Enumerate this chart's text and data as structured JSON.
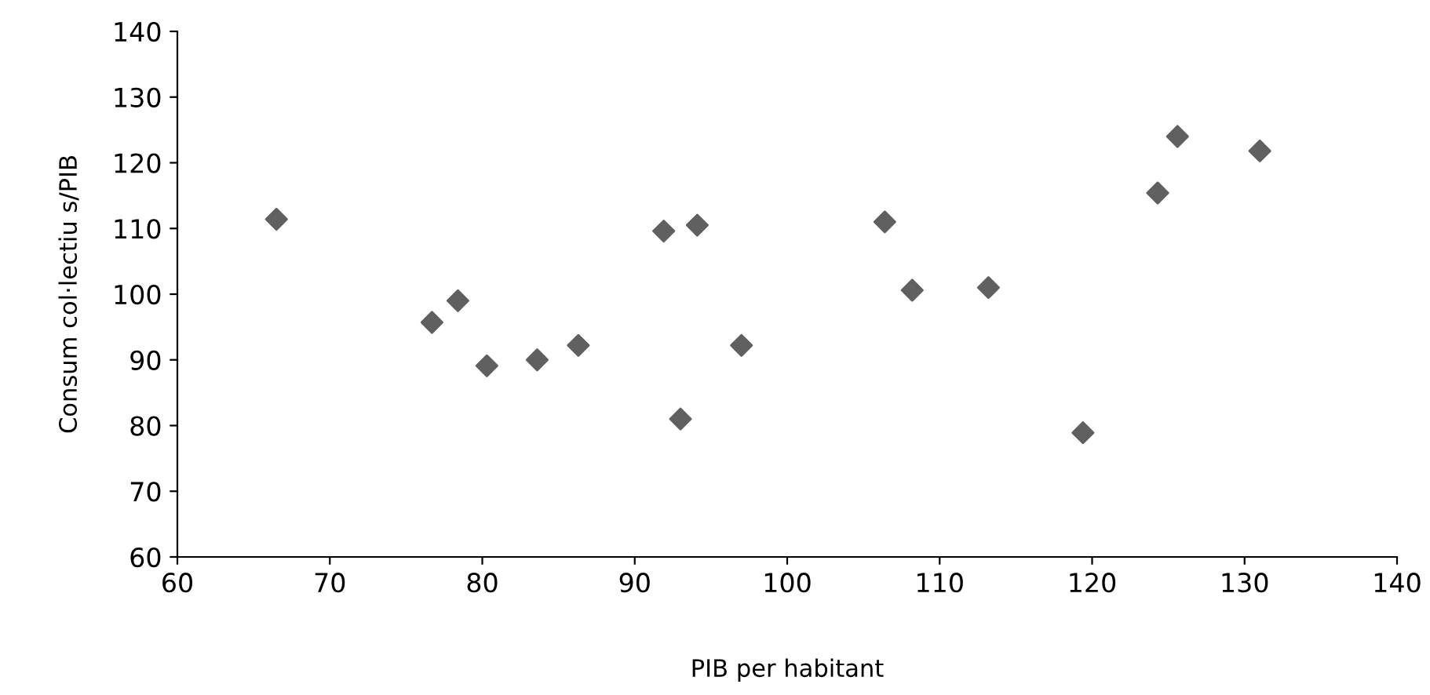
{
  "chart_data": {
    "type": "scatter",
    "xlabel": "PIB per habitant",
    "ylabel": "Consum col·lectiu s/PIB",
    "x": [
      66.5,
      76.7,
      78.4,
      80.3,
      83.6,
      86.3,
      91.9,
      93.0,
      94.1,
      97.0,
      106.4,
      108.2,
      113.2,
      119.4,
      124.3,
      125.6,
      131.0
    ],
    "series": [
      {
        "color": "#606060",
        "values": [
          111.4,
          95.7,
          99.0,
          89.1,
          90.0,
          92.2,
          109.6,
          81.0,
          110.5,
          92.2,
          111.0,
          100.6,
          101.0,
          78.9,
          115.4,
          124.0,
          121.8
        ]
      }
    ],
    "marker": "diamond",
    "grid": false,
    "legend": false,
    "xlim": [
      60,
      140
    ],
    "xticks": [
      60,
      70,
      80,
      90,
      100,
      110,
      120,
      130,
      140
    ],
    "ylim": [
      60,
      140
    ],
    "yticks": [
      60,
      70,
      80,
      90,
      100,
      110,
      120,
      130,
      140
    ]
  }
}
